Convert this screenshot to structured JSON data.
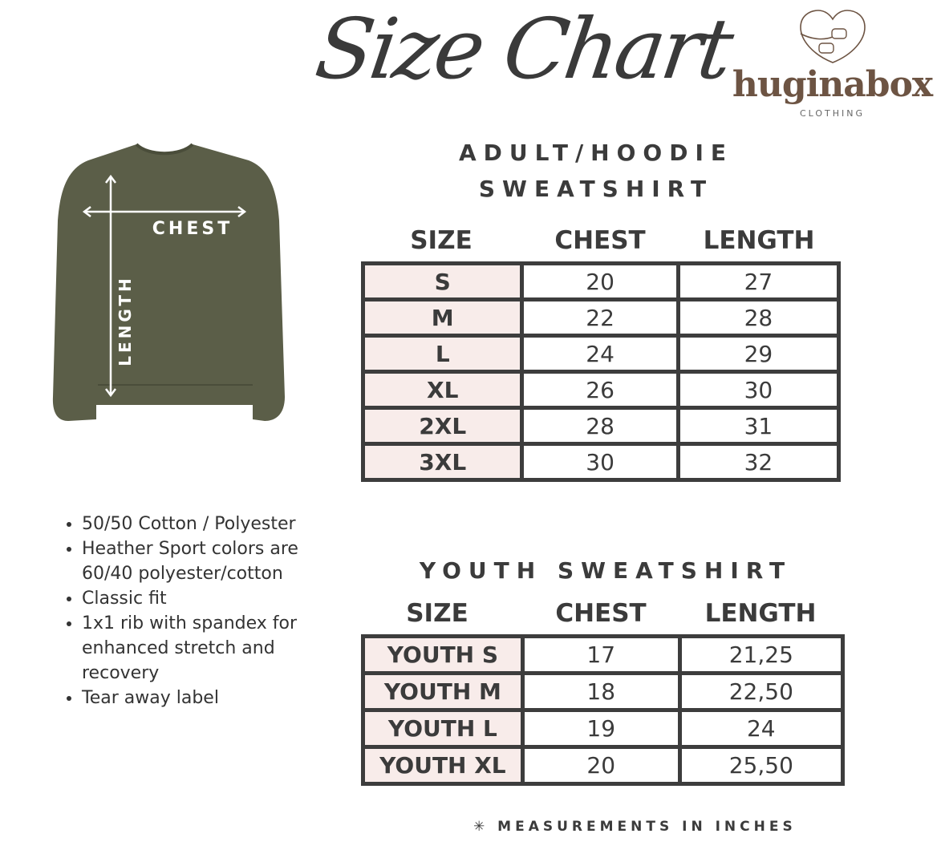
{
  "title": "Size Chart",
  "logo": {
    "brand": "huginabox",
    "sub": "CLOTHING"
  },
  "garment_labels": {
    "chest": "CHEST",
    "length": "LENGTH"
  },
  "adult": {
    "heading_line1": "ADULT/HOODIE",
    "heading_line2": "SWEATSHIRT",
    "columns": [
      "SIZE",
      "CHEST",
      "LENGTH"
    ],
    "rows": [
      [
        "S",
        "20",
        "27"
      ],
      [
        "M",
        "22",
        "28"
      ],
      [
        "L",
        "24",
        "29"
      ],
      [
        "XL",
        "26",
        "30"
      ],
      [
        "2XL",
        "28",
        "31"
      ],
      [
        "3XL",
        "30",
        "32"
      ]
    ]
  },
  "youth": {
    "heading": "YOUTH SWEATSHIRT",
    "columns": [
      "SIZE",
      "CHEST",
      "LENGTH"
    ],
    "rows": [
      [
        "YOUTH S",
        "17",
        "21,25"
      ],
      [
        "YOUTH M",
        "18",
        "22,50"
      ],
      [
        "YOUTH  L",
        "19",
        "24"
      ],
      [
        "YOUTH XL",
        "20",
        "25,50"
      ]
    ]
  },
  "features": [
    "50/50 Cotton / Polyester",
    "Heather Sport colors are 60/40 polyester/cotton",
    "Classic fit",
    "1x1 rib with spandex for enhanced stretch and recovery",
    "Tear away label"
  ],
  "footnote": "✳ MEASUREMENTS IN INCHES",
  "colors": {
    "garment": "#5b5e48",
    "size_cell": "#f8ecea",
    "border": "#3d3d3d",
    "brand": "#6d5443"
  }
}
